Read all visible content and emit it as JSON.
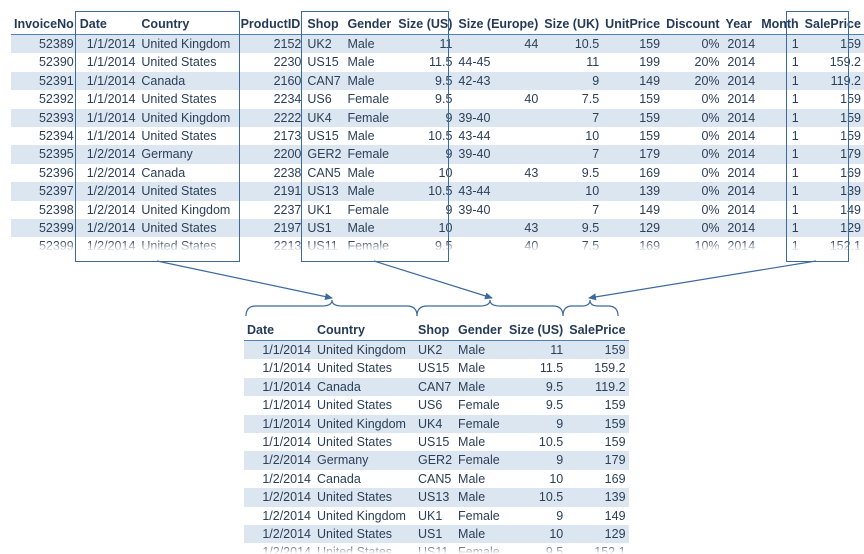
{
  "source_table": {
    "columns": [
      "InvoiceNo",
      "Date",
      "Country",
      "ProductID",
      "Shop",
      "Gender",
      "Size (US)",
      "Size (Europe)",
      "Size (UK)",
      "UnitPrice",
      "Discount",
      "Year",
      "Month",
      "SalePrice"
    ],
    "rows": [
      [
        "52389",
        "1/1/2014",
        "United Kingdom",
        "2152",
        "UK2",
        "Male",
        "11",
        "44",
        "10.5",
        "159",
        "0%",
        "2014",
        "1",
        "159"
      ],
      [
        "52390",
        "1/1/2014",
        "United States",
        "2230",
        "US15",
        "Male",
        "11.5",
        "44-45",
        "11",
        "199",
        "20%",
        "2014",
        "1",
        "159.2"
      ],
      [
        "52391",
        "1/1/2014",
        "Canada",
        "2160",
        "CAN7",
        "Male",
        "9.5",
        "42-43",
        "9",
        "149",
        "20%",
        "2014",
        "1",
        "119.2"
      ],
      [
        "52392",
        "1/1/2014",
        "United States",
        "2234",
        "US6",
        "Female",
        "9.5",
        "40",
        "7.5",
        "159",
        "0%",
        "2014",
        "1",
        "159"
      ],
      [
        "52393",
        "1/1/2014",
        "United Kingdom",
        "2222",
        "UK4",
        "Female",
        "9",
        "39-40",
        "7",
        "159",
        "0%",
        "2014",
        "1",
        "159"
      ],
      [
        "52394",
        "1/1/2014",
        "United States",
        "2173",
        "US15",
        "Male",
        "10.5",
        "43-44",
        "10",
        "159",
        "0%",
        "2014",
        "1",
        "159"
      ],
      [
        "52395",
        "1/2/2014",
        "Germany",
        "2200",
        "GER2",
        "Female",
        "9",
        "39-40",
        "7",
        "179",
        "0%",
        "2014",
        "1",
        "179"
      ],
      [
        "52396",
        "1/2/2014",
        "Canada",
        "2238",
        "CAN5",
        "Male",
        "10",
        "43",
        "9.5",
        "169",
        "0%",
        "2014",
        "1",
        "169"
      ],
      [
        "52397",
        "1/2/2014",
        "United States",
        "2191",
        "US13",
        "Male",
        "10.5",
        "43-44",
        "10",
        "139",
        "0%",
        "2014",
        "1",
        "139"
      ],
      [
        "52398",
        "1/2/2014",
        "United Kingdom",
        "2237",
        "UK1",
        "Female",
        "9",
        "39-40",
        "7",
        "149",
        "0%",
        "2014",
        "1",
        "149"
      ],
      [
        "52399",
        "1/2/2014",
        "United States",
        "2197",
        "US1",
        "Male",
        "10",
        "43",
        "9.5",
        "129",
        "0%",
        "2014",
        "1",
        "129"
      ],
      [
        "52399",
        "1/2/2014",
        "United States",
        "2213",
        "US11",
        "Female",
        "9.5",
        "40",
        "7.5",
        "169",
        "10%",
        "2014",
        "1",
        "152.1"
      ]
    ]
  },
  "result_table": {
    "columns": [
      "Date",
      "Country",
      "Shop",
      "Gender",
      "Size (US)",
      "SalePrice"
    ],
    "rows": [
      [
        "1/1/2014",
        "United Kingdom",
        "UK2",
        "Male",
        "11",
        "159"
      ],
      [
        "1/1/2014",
        "United States",
        "US15",
        "Male",
        "11.5",
        "159.2"
      ],
      [
        "1/1/2014",
        "Canada",
        "CAN7",
        "Male",
        "9.5",
        "119.2"
      ],
      [
        "1/1/2014",
        "United States",
        "US6",
        "Female",
        "9.5",
        "159"
      ],
      [
        "1/1/2014",
        "United Kingdom",
        "UK4",
        "Female",
        "9",
        "159"
      ],
      [
        "1/1/2014",
        "United States",
        "US15",
        "Male",
        "10.5",
        "159"
      ],
      [
        "1/2/2014",
        "Germany",
        "GER2",
        "Female",
        "9",
        "179"
      ],
      [
        "1/2/2014",
        "Canada",
        "CAN5",
        "Male",
        "10",
        "169"
      ],
      [
        "1/2/2014",
        "United States",
        "US13",
        "Male",
        "10.5",
        "139"
      ],
      [
        "1/2/2014",
        "United Kingdom",
        "UK1",
        "Female",
        "9",
        "149"
      ],
      [
        "1/2/2014",
        "United States",
        "US1",
        "Male",
        "10",
        "129"
      ],
      [
        "1/2/2014",
        "United States",
        "US11",
        "Female",
        "9.5",
        "152.1"
      ]
    ]
  },
  "colors": {
    "band": "#dce6f1",
    "header_rule": "#4f81bd",
    "outline": "#3d6a9e",
    "text": "#2b3f57"
  }
}
